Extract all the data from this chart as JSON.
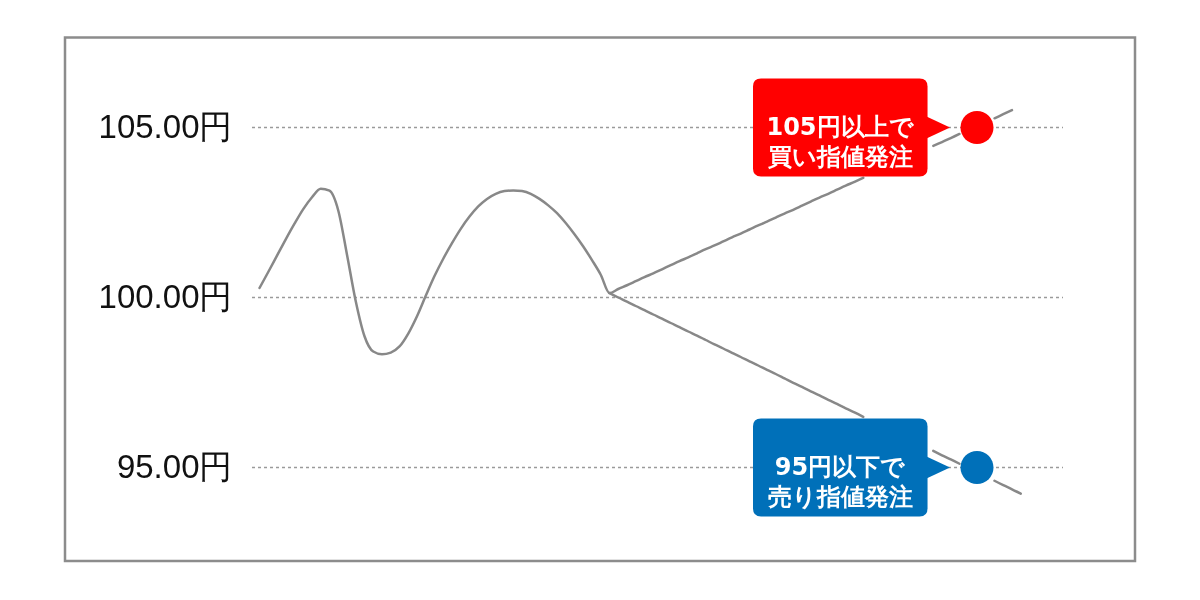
{
  "chart_data": {
    "type": "line",
    "categories": [
      null,
      null,
      null,
      null,
      null,
      null,
      null,
      null,
      null,
      null,
      null,
      null,
      null,
      null,
      null,
      null,
      null,
      null,
      null,
      null,
      null,
      null,
      null,
      null,
      null,
      null,
      null,
      null,
      null,
      null,
      null,
      null,
      null,
      null,
      null,
      null,
      null,
      null,
      null,
      null,
      null,
      null,
      null,
      null,
      null,
      null,
      null,
      null,
      null,
      null,
      null,
      null,
      null,
      null,
      null,
      null,
      null,
      null,
      null,
      null,
      null,
      null,
      null,
      null,
      null,
      null,
      null,
      null,
      null,
      null,
      null,
      null,
      null,
      null,
      null,
      null,
      null,
      null,
      null,
      null,
      null,
      null,
      null,
      null,
      null,
      null,
      null,
      null
    ],
    "series": [
      {
        "color": "#888888",
        "values": [
          100.28,
          100.75,
          101.23,
          101.71,
          102.17,
          102.6,
          102.95,
          103.2,
          103.14,
          102.56,
          101.26,
          99.89,
          98.86,
          98.41,
          98.33,
          98.38,
          98.56,
          98.94,
          99.45,
          100.05,
          100.63,
          101.14,
          101.6,
          102.02,
          102.38,
          102.68,
          102.9,
          103.05,
          103.13,
          103.15,
          103.13,
          103.05,
          102.9,
          102.71,
          102.48,
          102.19,
          101.86,
          101.5,
          101.1,
          100.67,
          100.13,
          100.25,
          100.36,
          100.48,
          100.6,
          100.71,
          100.83,
          100.95,
          101.07,
          101.18,
          101.3,
          101.42,
          101.53,
          101.65,
          101.77,
          101.88,
          102.0,
          102.12,
          102.23,
          102.35,
          102.47,
          102.58,
          102.7,
          102.82,
          102.94,
          103.05,
          103.17,
          103.29,
          103.4,
          103.52,
          null,
          null,
          null,
          null,
          null,
          null,
          null,
          null,
          null,
          null,
          null,
          null,
          null,
          null,
          null,
          null,
          null,
          null
        ]
      },
      {
        "color": "#888888",
        "values": [
          null,
          null,
          null,
          null,
          null,
          null,
          null,
          null,
          null,
          null,
          null,
          null,
          null,
          null,
          null,
          null,
          null,
          null,
          null,
          null,
          null,
          null,
          null,
          null,
          null,
          null,
          null,
          null,
          null,
          null,
          null,
          null,
          null,
          null,
          null,
          null,
          null,
          null,
          null,
          null,
          100.13,
          100.0,
          99.88,
          99.75,
          99.63,
          99.5,
          99.38,
          99.25,
          99.13,
          99.0,
          98.88,
          98.75,
          98.62,
          98.5,
          98.37,
          98.25,
          98.12,
          98.0,
          97.87,
          97.75,
          97.62,
          97.49,
          97.37,
          97.24,
          97.12,
          96.99,
          96.87,
          96.74,
          96.62,
          96.49,
          null,
          null,
          null,
          null,
          null,
          null,
          null,
          null,
          null,
          null,
          null,
          null,
          null,
          null,
          null,
          null,
          null,
          null
        ]
      },
      {
        "color": "#888888",
        "values": [
          null,
          null,
          null,
          null,
          null,
          null,
          null,
          null,
          null,
          null,
          null,
          null,
          null,
          null,
          null,
          null,
          null,
          null,
          null,
          null,
          null,
          null,
          null,
          null,
          null,
          null,
          null,
          null,
          null,
          null,
          null,
          null,
          null,
          null,
          null,
          null,
          null,
          null,
          null,
          null,
          null,
          null,
          null,
          null,
          null,
          null,
          null,
          null,
          null,
          null,
          null,
          null,
          null,
          null,
          null,
          null,
          null,
          null,
          null,
          null,
          null,
          null,
          null,
          null,
          null,
          null,
          null,
          null,
          null,
          null,
          null,
          null,
          null,
          null,
          null,
          null,
          null,
          104.46,
          104.57,
          104.69,
          104.81,
          null,
          null,
          null,
          null,
          null,
          null,
          null
        ]
      },
      {
        "color": "#888888",
        "values": [
          null,
          null,
          null,
          null,
          null,
          null,
          null,
          null,
          null,
          null,
          null,
          null,
          null,
          null,
          null,
          null,
          null,
          null,
          null,
          null,
          null,
          null,
          null,
          null,
          null,
          null,
          null,
          null,
          null,
          null,
          null,
          null,
          null,
          null,
          null,
          null,
          null,
          null,
          null,
          null,
          null,
          null,
          null,
          null,
          null,
          null,
          null,
          null,
          null,
          null,
          null,
          null,
          null,
          null,
          null,
          null,
          null,
          null,
          null,
          null,
          null,
          null,
          null,
          null,
          null,
          null,
          null,
          null,
          null,
          null,
          null,
          null,
          null,
          null,
          null,
          null,
          null,
          95.49,
          95.36,
          95.24,
          95.11,
          null,
          null,
          null,
          null,
          null,
          null,
          null
        ]
      },
      {
        "color": "#888888",
        "values": [
          null,
          null,
          null,
          null,
          null,
          null,
          null,
          null,
          null,
          null,
          null,
          null,
          null,
          null,
          null,
          null,
          null,
          null,
          null,
          null,
          null,
          null,
          null,
          null,
          null,
          null,
          null,
          null,
          null,
          null,
          null,
          null,
          null,
          null,
          null,
          null,
          null,
          null,
          null,
          null,
          null,
          null,
          null,
          null,
          null,
          null,
          null,
          null,
          null,
          null,
          null,
          null,
          null,
          null,
          null,
          null,
          null,
          null,
          null,
          null,
          null,
          null,
          null,
          null,
          null,
          null,
          null,
          null,
          null,
          null,
          null,
          null,
          null,
          null,
          null,
          null,
          null,
          null,
          null,
          null,
          null,
          null,
          null,
          null,
          94.61,
          94.48,
          94.36,
          94.23
        ]
      },
      {
        "color": "#888888",
        "values": [
          null,
          null,
          null,
          null,
          null,
          null,
          null,
          null,
          null,
          null,
          null,
          null,
          null,
          null,
          null,
          null,
          null,
          null,
          null,
          null,
          null,
          null,
          null,
          null,
          null,
          null,
          null,
          null,
          null,
          null,
          null,
          null,
          null,
          null,
          null,
          null,
          null,
          null,
          null,
          null,
          null,
          null,
          null,
          null,
          null,
          null,
          null,
          null,
          null,
          null,
          null,
          null,
          null,
          null,
          null,
          null,
          null,
          null,
          null,
          null,
          null,
          null,
          null,
          null,
          null,
          null,
          null,
          null,
          null,
          null,
          null,
          null,
          null,
          null,
          null,
          null,
          null,
          null,
          null,
          null,
          null,
          null,
          null,
          null,
          105.27,
          105.39,
          105.51,
          null
        ]
      },
      {
        "type": "scatter",
        "color": "#ff0000",
        "values": [
          null,
          null,
          null,
          null,
          null,
          null,
          null,
          null,
          null,
          null,
          null,
          null,
          null,
          null,
          null,
          null,
          null,
          null,
          null,
          null,
          null,
          null,
          null,
          null,
          null,
          null,
          null,
          null,
          null,
          null,
          null,
          null,
          null,
          null,
          null,
          null,
          null,
          null,
          null,
          null,
          null,
          null,
          null,
          null,
          null,
          null,
          null,
          null,
          null,
          null,
          null,
          null,
          null,
          null,
          null,
          null,
          null,
          null,
          null,
          null,
          null,
          null,
          null,
          null,
          null,
          null,
          null,
          null,
          null,
          null,
          null,
          null,
          null,
          null,
          null,
          null,
          null,
          null,
          null,
          null,
          null,
          null,
          105,
          null,
          null,
          null,
          null,
          null
        ]
      },
      {
        "type": "scatter",
        "color": "#0070b9",
        "values": [
          null,
          null,
          null,
          null,
          null,
          null,
          null,
          null,
          null,
          null,
          null,
          null,
          null,
          null,
          null,
          null,
          null,
          null,
          null,
          null,
          null,
          null,
          null,
          null,
          null,
          null,
          null,
          null,
          null,
          null,
          null,
          null,
          null,
          null,
          null,
          null,
          null,
          null,
          null,
          null,
          null,
          null,
          null,
          null,
          null,
          null,
          null,
          null,
          null,
          null,
          null,
          null,
          null,
          null,
          null,
          null,
          null,
          null,
          null,
          null,
          null,
          null,
          null,
          null,
          null,
          null,
          null,
          null,
          null,
          null,
          null,
          null,
          null,
          null,
          null,
          null,
          null,
          null,
          null,
          null,
          null,
          null,
          95,
          null,
          null,
          null,
          null,
          null
        ]
      }
    ],
    "ylim": [
      92.25,
      107.65
    ],
    "yticks": [
      {
        "value": 95,
        "label": "95.00円"
      },
      {
        "value": 100,
        "label": "100.00円"
      },
      {
        "value": 105,
        "label": "105.00円"
      }
    ],
    "grid": "y",
    "tick_labels": "y",
    "annotations": [
      "105円以上で買い指値発注",
      "95円以下で売り指値発注"
    ]
  }
}
